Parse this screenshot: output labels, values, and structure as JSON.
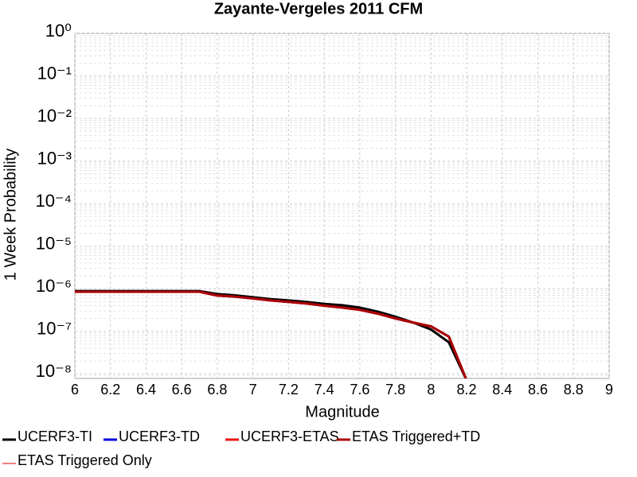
{
  "chart_data": {
    "type": "line",
    "title": "Zayante-Vergeles 2011 CFM",
    "x_label": "Magnitude",
    "y_label": "1 Week Probability",
    "log_y": true,
    "grid": true,
    "minor_grid": true,
    "legend": "bottom",
    "x": [
      6,
      6.1,
      6.2,
      6.3,
      6.4,
      6.5,
      6.6,
      6.7,
      6.8,
      6.9,
      7,
      7.1,
      7.2,
      7.3,
      7.4,
      7.5,
      7.6,
      7.7,
      7.8,
      7.9,
      8,
      8.1,
      8.2
    ],
    "series": [
      {
        "name": "UCERF3-TI",
        "color": "#000000",
        "values": [
          8.8e-07,
          8.8e-07,
          8.8e-07,
          8.8e-07,
          8.8e-07,
          8.8e-07,
          8.8e-07,
          8.8e-07,
          7.5e-07,
          7e-07,
          6.3e-07,
          5.7e-07,
          5.3e-07,
          4.9e-07,
          4.4e-07,
          4.1e-07,
          3.6e-07,
          2.9e-07,
          2.2e-07,
          1.6e-07,
          1.1e-07,
          5.5e-08,
          7e-09
        ]
      },
      {
        "name": "UCERF3-TD",
        "color": "#0000dd",
        "values": [
          8.5e-07,
          8.5e-07,
          8.5e-07,
          8.5e-07,
          8.5e-07,
          8.5e-07,
          8.5e-07,
          8.5e-07,
          6.9e-07,
          6.5e-07,
          5.9e-07,
          5.3e-07,
          4.9e-07,
          4.5e-07,
          4e-07,
          3.6e-07,
          3.2e-07,
          2.6e-07,
          2e-07,
          1.6e-07,
          1.3e-07,
          7.5e-08,
          7e-09
        ]
      },
      {
        "name": "UCERF3-ETAS",
        "color": "#ee1111",
        "values": [
          8.5e-07,
          8.5e-07,
          8.5e-07,
          8.5e-07,
          8.5e-07,
          8.5e-07,
          8.5e-07,
          8.5e-07,
          6.9e-07,
          6.5e-07,
          5.9e-07,
          5.3e-07,
          4.9e-07,
          4.5e-07,
          4e-07,
          3.6e-07,
          3.2e-07,
          2.6e-07,
          2e-07,
          1.6e-07,
          1.3e-07,
          7.5e-08,
          7e-09
        ]
      },
      {
        "name": "ETAS Triggered+TD",
        "color": "#aa0000",
        "values": [
          8.5e-07,
          8.5e-07,
          8.5e-07,
          8.5e-07,
          8.5e-07,
          8.5e-07,
          8.5e-07,
          8.5e-07,
          6.9e-07,
          6.5e-07,
          5.9e-07,
          5.3e-07,
          4.9e-07,
          4.5e-07,
          4e-07,
          3.6e-07,
          3.2e-07,
          2.6e-07,
          2e-07,
          1.6e-07,
          1.3e-07,
          7.5e-08,
          7e-09
        ]
      },
      {
        "name": "ETAS Triggered Only",
        "color": "#f08080",
        "values": [
          null,
          null,
          null,
          null,
          null,
          null,
          null,
          null,
          null,
          null,
          null,
          null,
          null,
          null,
          null,
          null,
          null,
          null,
          null,
          null,
          null,
          null,
          null
        ]
      }
    ],
    "xlim": [
      6,
      9
    ],
    "xticks": [
      6,
      6.2,
      6.4,
      6.6,
      6.8,
      7,
      7.2,
      7.4,
      7.6,
      7.8,
      8,
      8.2,
      8.4,
      8.6,
      8.8,
      9
    ],
    "ylim": [
      7.8e-09,
      1
    ],
    "yticks": [
      {
        "value": 1e-08,
        "label": "10⁻⁸"
      },
      {
        "value": 1e-07,
        "label": "10⁻⁷"
      },
      {
        "value": 1e-06,
        "label": "10⁻⁶"
      },
      {
        "value": 1e-05,
        "label": "10⁻⁵"
      },
      {
        "value": 0.0001,
        "label": "10⁻⁴"
      },
      {
        "value": 0.001,
        "label": "10⁻³"
      },
      {
        "value": 0.01,
        "label": "10⁻²"
      },
      {
        "value": 0.1,
        "label": "10⁻¹"
      },
      {
        "value": 1,
        "label": "10⁰"
      }
    ]
  }
}
